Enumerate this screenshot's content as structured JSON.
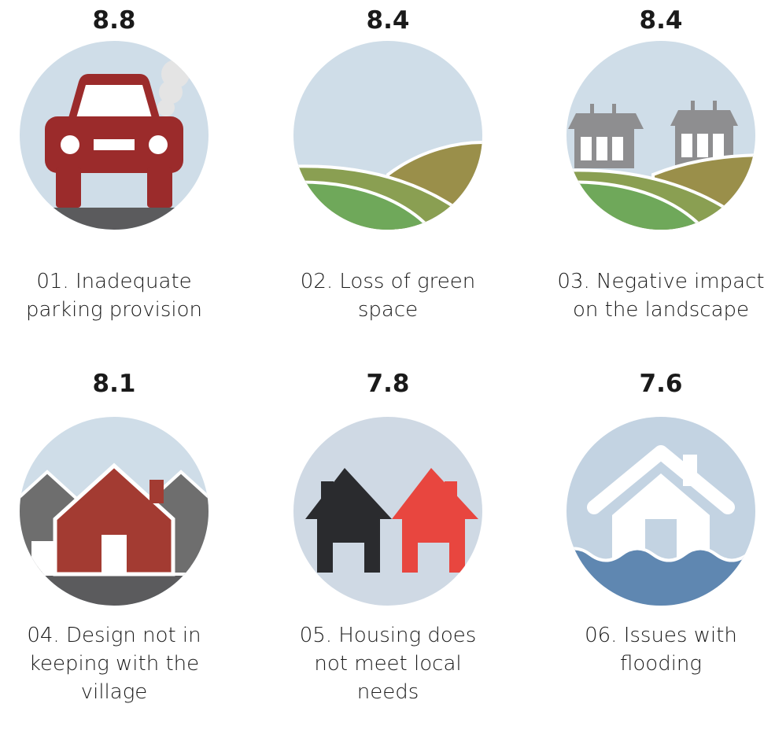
{
  "items": [
    {
      "score": "8.8",
      "label": "01. Inadequate parking provision"
    },
    {
      "score": "8.4",
      "label": "02. Loss of green space"
    },
    {
      "score": "8.4",
      "label": "03. Negative impact on the landscape"
    },
    {
      "score": "8.1",
      "label": "04. Design not in keeping with the village"
    },
    {
      "score": "7.8",
      "label": "05. Housing does not meet local needs"
    },
    {
      "score": "7.6",
      "label": "06. Issues with flooding"
    }
  ]
}
